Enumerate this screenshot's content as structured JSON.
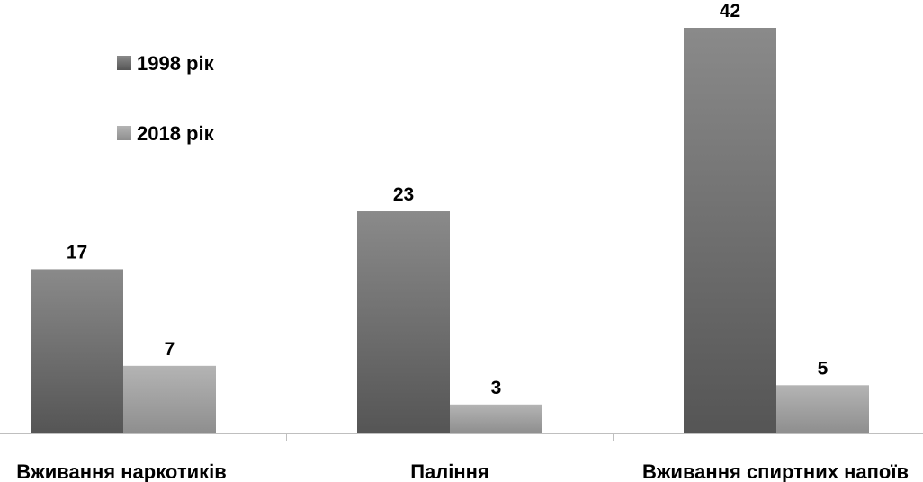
{
  "chart_data": {
    "type": "bar",
    "title": "",
    "xlabel": "",
    "ylabel": "",
    "categories": [
      "Вживання наркотиків",
      "Паління",
      "Вживання спиртних напоїв"
    ],
    "series": [
      {
        "name": "1998 рік",
        "values": [
          17,
          23,
          42
        ],
        "color": "#6b6b6b"
      },
      {
        "name": "2018 рік",
        "values": [
          7,
          3,
          5
        ],
        "color": "#a3a3a3"
      }
    ],
    "ylim": [
      0,
      42
    ],
    "grid": false,
    "legend_position": "top-left",
    "data_labels": true
  }
}
